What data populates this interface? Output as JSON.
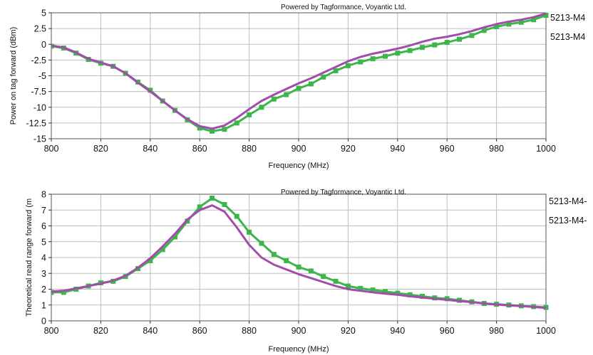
{
  "chart_data": [
    {
      "type": "line",
      "credit": "Powered by Tagformance, Voyantic Ltd.",
      "xlabel": "Frequency (MHz)",
      "ylabel": "Power on tag forward (dBm)",
      "xlim": [
        800,
        1000
      ],
      "ylim": [
        -15,
        5
      ],
      "xticks": [
        800,
        820,
        840,
        860,
        880,
        900,
        920,
        940,
        960,
        980,
        1000
      ],
      "xtick_labels": [
        "800",
        "820",
        "840",
        "860",
        "880",
        "900",
        "920",
        "940",
        "960",
        "980",
        "1000"
      ],
      "yticks": [
        5,
        2.5,
        0,
        -2.5,
        -5,
        -7.5,
        -10,
        -12.5,
        -15
      ],
      "ytick_labels": [
        "5",
        "2.5",
        "0",
        "-2.5",
        "-5",
        "-7.5",
        "-10",
        "-12.5",
        "-15"
      ],
      "grid": true,
      "legend_position": "right",
      "series": [
        {
          "name": "5213-M4",
          "color": "#3cb64a",
          "marker": "square",
          "x": [
            800,
            805,
            810,
            815,
            820,
            825,
            830,
            835,
            840,
            845,
            850,
            855,
            860,
            865,
            870,
            875,
            880,
            885,
            890,
            895,
            900,
            905,
            910,
            915,
            920,
            925,
            930,
            935,
            940,
            945,
            950,
            955,
            960,
            965,
            970,
            975,
            980,
            985,
            990,
            995,
            1000
          ],
          "y": [
            -0.3,
            -0.6,
            -1.4,
            -2.4,
            -3.0,
            -3.5,
            -4.6,
            -6.0,
            -7.3,
            -9.0,
            -10.5,
            -12.0,
            -13.3,
            -13.8,
            -13.5,
            -12.5,
            -11.2,
            -10.0,
            -8.7,
            -8.0,
            -7.0,
            -6.3,
            -5.2,
            -4.2,
            -3.4,
            -2.8,
            -2.3,
            -1.9,
            -1.4,
            -1.0,
            -0.5,
            -0.1,
            0.3,
            0.8,
            1.4,
            2.2,
            2.8,
            3.2,
            3.5,
            3.9,
            4.6
          ]
        },
        {
          "name": "5213-M4",
          "color": "#a24dab",
          "marker": "none",
          "x": [
            800,
            805,
            810,
            815,
            820,
            825,
            830,
            835,
            840,
            845,
            850,
            855,
            860,
            865,
            870,
            875,
            880,
            885,
            890,
            895,
            900,
            905,
            910,
            915,
            920,
            925,
            930,
            935,
            940,
            945,
            950,
            955,
            960,
            965,
            970,
            975,
            980,
            985,
            990,
            995,
            1000
          ],
          "y": [
            -0.2,
            -0.5,
            -1.3,
            -2.3,
            -2.9,
            -3.5,
            -4.6,
            -6.1,
            -7.5,
            -9.0,
            -10.5,
            -11.9,
            -13.0,
            -13.4,
            -12.9,
            -11.7,
            -10.3,
            -9.0,
            -8.0,
            -7.1,
            -6.2,
            -5.4,
            -4.5,
            -3.6,
            -2.7,
            -2.0,
            -1.5,
            -1.1,
            -0.7,
            -0.2,
            0.4,
            0.9,
            1.2,
            1.6,
            2.1,
            2.7,
            3.2,
            3.6,
            3.9,
            4.3,
            4.9
          ]
        }
      ]
    },
    {
      "type": "line",
      "credit": "Powered by Tagformance, Voyantic Ltd.",
      "xlabel": "Frequency (MHz)",
      "ylabel": "Theoretical read range forward (m",
      "xlim": [
        800,
        1000
      ],
      "ylim": [
        0,
        8
      ],
      "xticks": [
        800,
        820,
        840,
        860,
        880,
        900,
        920,
        940,
        960,
        980,
        1000
      ],
      "xtick_labels": [
        "800",
        "820",
        "840",
        "860",
        "880",
        "900",
        "920",
        "940",
        "960",
        "980",
        "1000"
      ],
      "yticks": [
        8,
        7,
        6,
        5,
        4,
        3,
        2,
        1,
        0
      ],
      "ytick_labels": [
        "8",
        "7",
        "6",
        "5",
        "4",
        "3",
        "2",
        "1",
        "0"
      ],
      "grid": true,
      "legend_position": "right",
      "series": [
        {
          "name": "5213-M4-",
          "color": "#3cb64a",
          "marker": "square",
          "x": [
            800,
            805,
            810,
            815,
            820,
            825,
            830,
            835,
            840,
            845,
            850,
            855,
            860,
            865,
            870,
            875,
            880,
            885,
            890,
            895,
            900,
            905,
            910,
            915,
            920,
            925,
            930,
            935,
            940,
            945,
            950,
            955,
            960,
            965,
            970,
            975,
            980,
            985,
            990,
            995,
            1000
          ],
          "y": [
            1.8,
            1.8,
            2.0,
            2.2,
            2.4,
            2.5,
            2.8,
            3.3,
            3.8,
            4.5,
            5.3,
            6.3,
            7.2,
            7.75,
            7.35,
            6.6,
            5.6,
            4.9,
            4.2,
            3.8,
            3.4,
            3.15,
            2.8,
            2.5,
            2.2,
            2.05,
            1.95,
            1.85,
            1.75,
            1.65,
            1.55,
            1.45,
            1.4,
            1.3,
            1.2,
            1.1,
            1.05,
            1.0,
            0.95,
            0.9,
            0.85
          ]
        },
        {
          "name": "5213-M4-",
          "color": "#a24dab",
          "marker": "none",
          "x": [
            800,
            805,
            810,
            815,
            820,
            825,
            830,
            835,
            840,
            845,
            850,
            855,
            860,
            865,
            870,
            875,
            880,
            885,
            890,
            895,
            900,
            905,
            910,
            915,
            920,
            925,
            930,
            935,
            940,
            945,
            950,
            955,
            960,
            965,
            970,
            975,
            980,
            985,
            990,
            995,
            1000
          ],
          "y": [
            1.85,
            1.9,
            2.05,
            2.2,
            2.35,
            2.55,
            2.85,
            3.35,
            3.95,
            4.7,
            5.5,
            6.4,
            7.0,
            7.3,
            6.9,
            5.9,
            4.8,
            4.0,
            3.55,
            3.25,
            2.95,
            2.7,
            2.45,
            2.2,
            2.0,
            1.9,
            1.8,
            1.72,
            1.65,
            1.55,
            1.48,
            1.4,
            1.33,
            1.25,
            1.18,
            1.1,
            1.03,
            0.98,
            0.93,
            0.88,
            0.82
          ]
        }
      ]
    }
  ]
}
